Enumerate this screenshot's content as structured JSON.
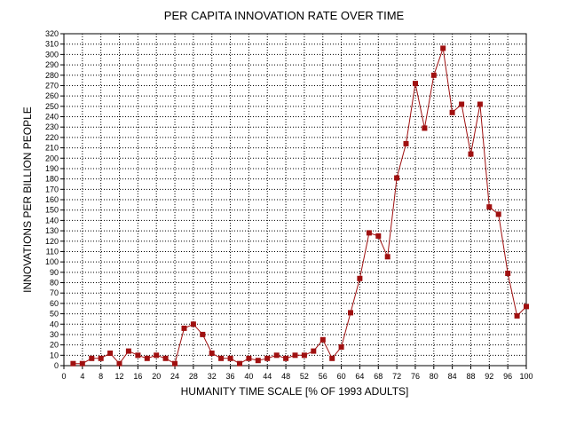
{
  "chart_data": {
    "type": "line",
    "title": "PER CAPITA INNOVATION RATE OVER TIME",
    "xlabel": "HUMANITY TIME SCALE [% OF 1993 ADULTS]",
    "ylabel": "INNOVATIONS PER BILLION PEOPLE",
    "xlim": [
      0,
      100
    ],
    "ylim": [
      0,
      320
    ],
    "xticks": [
      0,
      4,
      8,
      12,
      16,
      20,
      24,
      28,
      32,
      36,
      40,
      44,
      48,
      52,
      56,
      60,
      64,
      68,
      72,
      76,
      80,
      84,
      88,
      92,
      96,
      100
    ],
    "yticks": [
      0,
      10,
      20,
      30,
      40,
      50,
      60,
      70,
      80,
      90,
      100,
      110,
      120,
      130,
      140,
      150,
      160,
      170,
      180,
      190,
      200,
      210,
      220,
      230,
      240,
      250,
      260,
      270,
      280,
      290,
      300,
      310,
      320
    ],
    "grid": true,
    "series": [
      {
        "name": "Innovation rate",
        "color": "#a01010",
        "marker": "square",
        "x": [
          2,
          4,
          6,
          8,
          10,
          12,
          14,
          16,
          18,
          20,
          22,
          24,
          26,
          28,
          30,
          32,
          34,
          36,
          38,
          40,
          42,
          44,
          46,
          48,
          50,
          52,
          54,
          56,
          58,
          60,
          62,
          64,
          66,
          68,
          70,
          72,
          74,
          76,
          78,
          80,
          82,
          84,
          86,
          88,
          90,
          92,
          94,
          96,
          98,
          100
        ],
        "values": [
          2,
          2,
          7,
          7,
          12,
          2,
          14,
          10,
          7,
          10,
          7,
          2,
          36,
          40,
          30,
          12,
          7,
          7,
          2,
          7,
          5,
          7,
          10,
          7,
          10,
          10,
          14,
          25,
          7,
          18,
          51,
          84,
          128,
          125,
          105,
          181,
          214,
          272,
          229,
          280,
          306,
          244,
          252,
          204,
          252,
          153,
          146,
          89,
          48,
          57
        ]
      }
    ]
  }
}
